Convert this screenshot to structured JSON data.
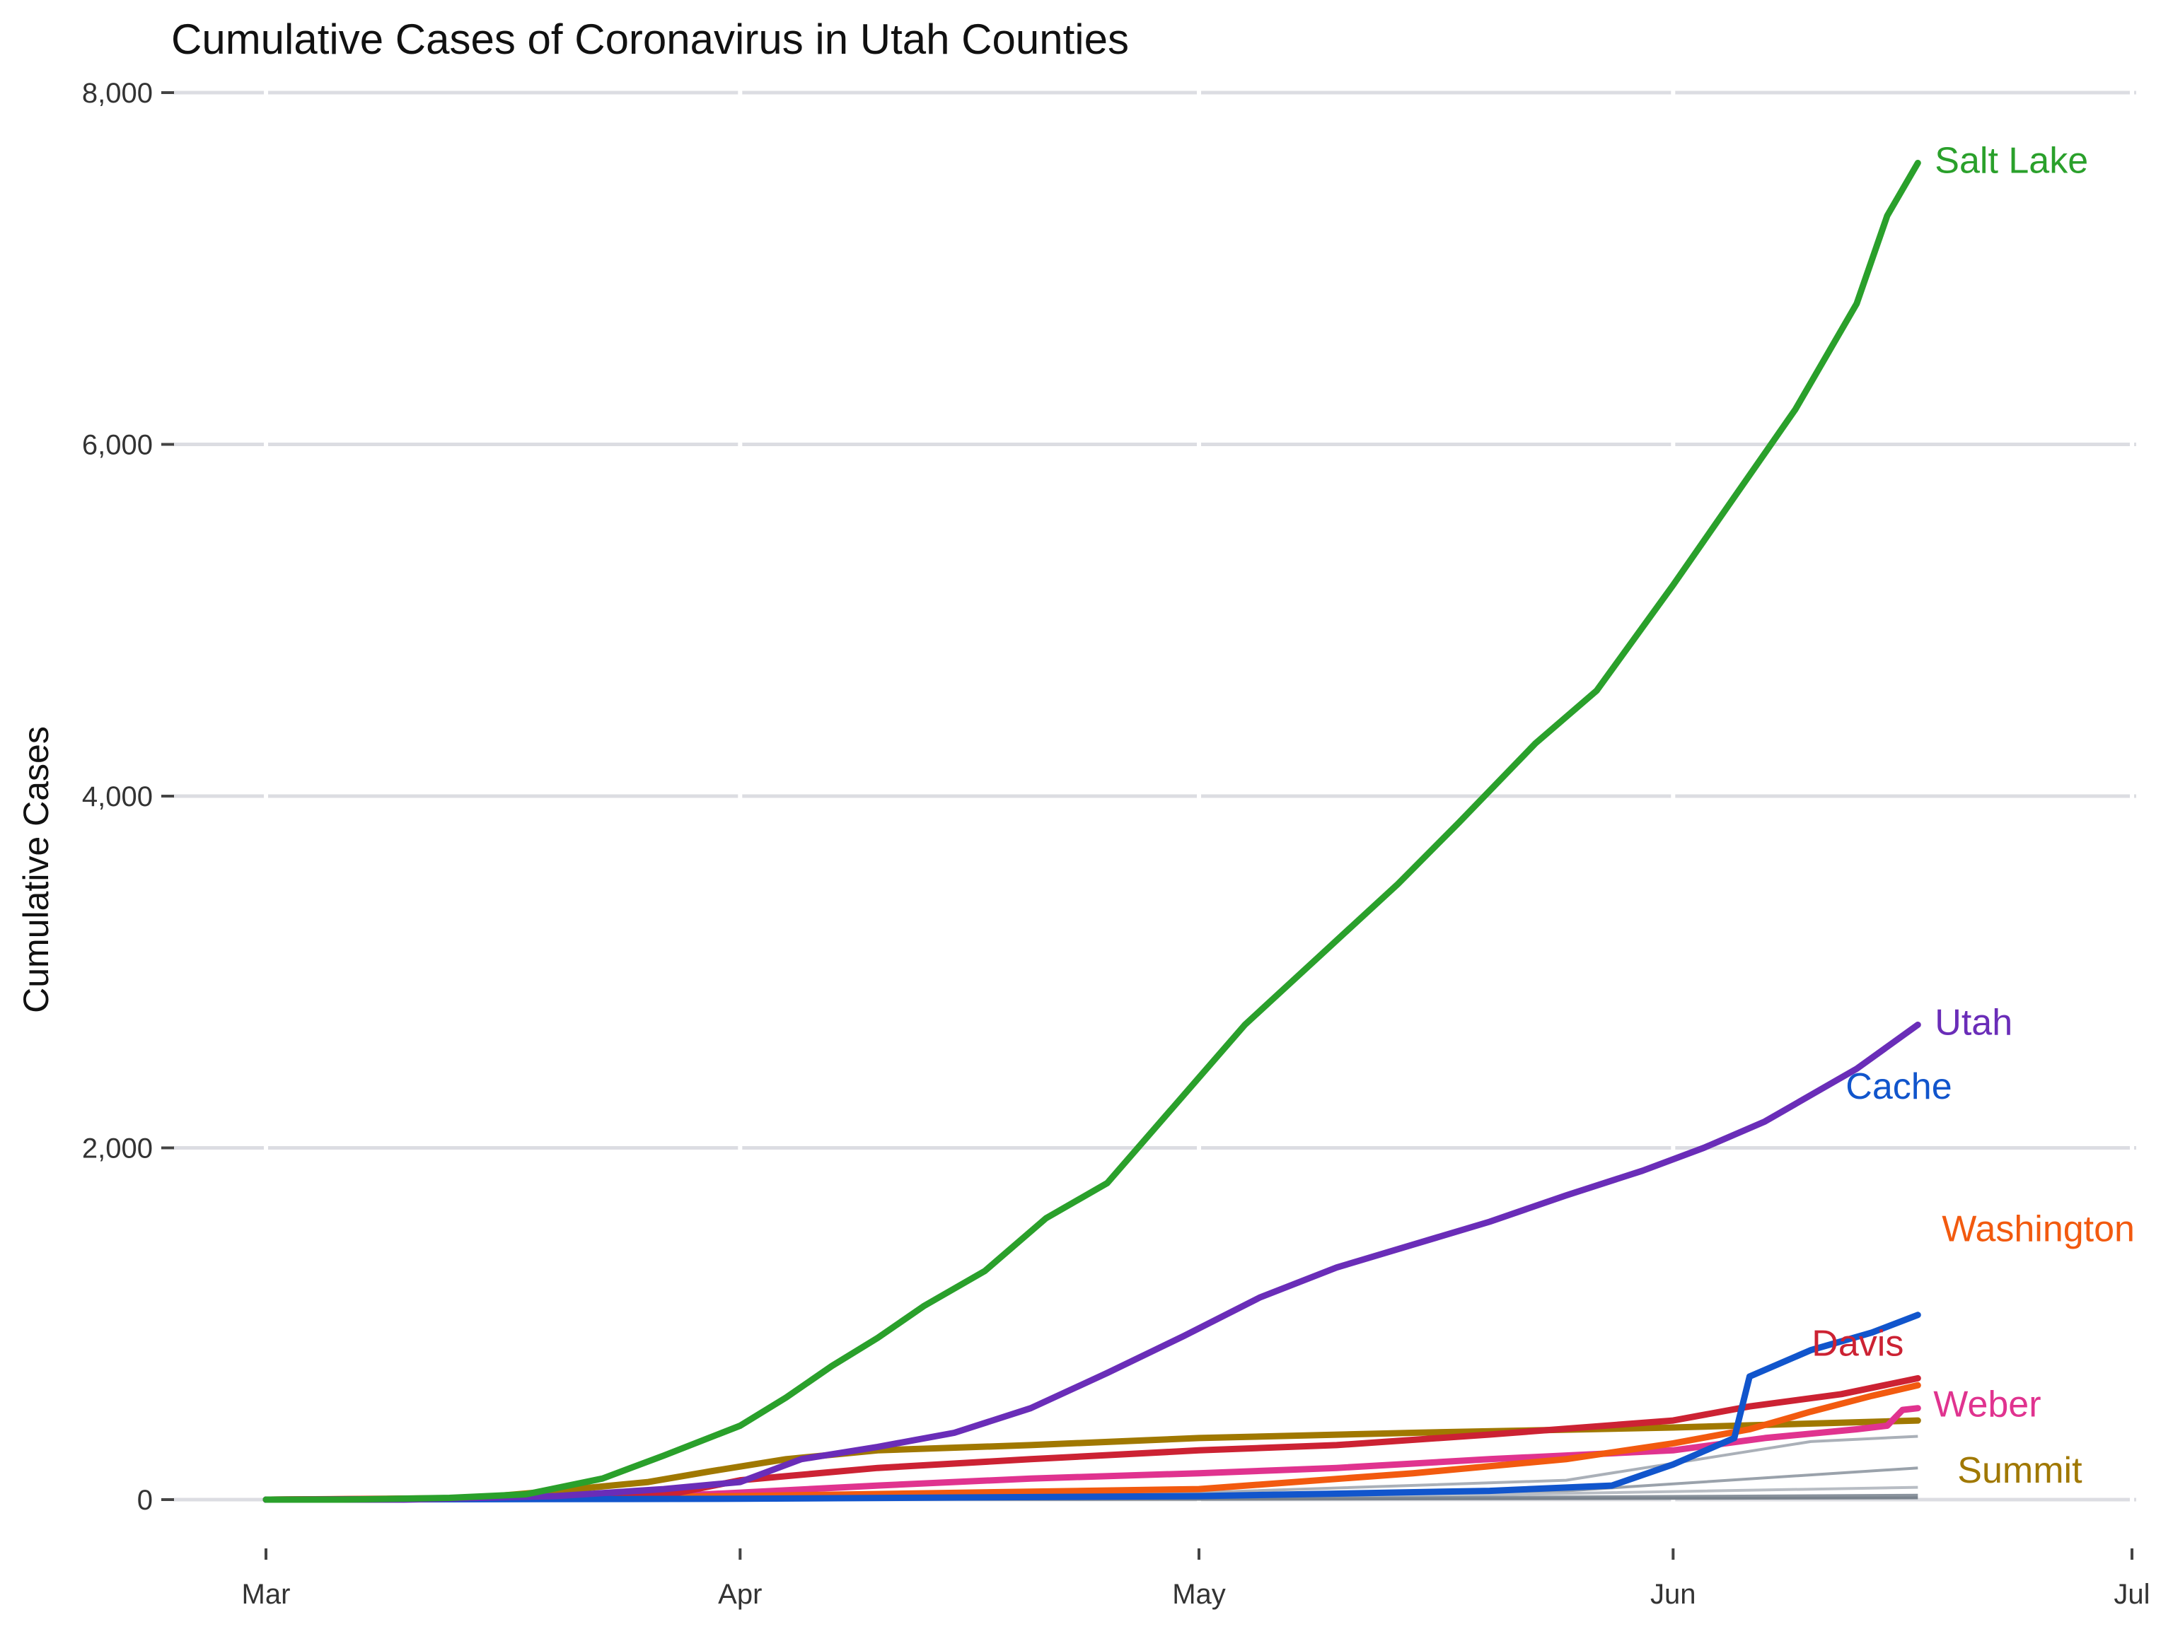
{
  "chart_data": {
    "type": "line",
    "title": "Cumulative Cases of Coronavirus in Utah Counties",
    "xlabel": "",
    "ylabel": "Cumulative Cases",
    "x_range": [
      "2020-03-01",
      "2020-07-01"
    ],
    "ylim": [
      0,
      8000
    ],
    "y_ticks": [
      0,
      2000,
      4000,
      6000,
      8000
    ],
    "y_tick_labels": [
      "0",
      "2,000",
      "4,000",
      "6,000",
      "8,000"
    ],
    "x_ticks": [
      "2020-03-01",
      "2020-04-01",
      "2020-05-01",
      "2020-06-01",
      "2020-07-01"
    ],
    "x_tick_labels": [
      "Mar",
      "Apr",
      "May",
      "Jun",
      "Jul"
    ],
    "grid": true,
    "legend": "direct labels at line ends",
    "series": [
      {
        "name": "Salt Lake",
        "color": "#2aa02b",
        "points": [
          [
            "2020-03-01",
            0
          ],
          [
            "2020-03-06",
            0
          ],
          [
            "2020-03-13",
            10
          ],
          [
            "2020-03-18",
            30
          ],
          [
            "2020-03-23",
            120
          ],
          [
            "2020-03-27",
            250
          ],
          [
            "2020-04-01",
            420
          ],
          [
            "2020-04-04",
            580
          ],
          [
            "2020-04-07",
            760
          ],
          [
            "2020-04-10",
            920
          ],
          [
            "2020-04-13",
            1100
          ],
          [
            "2020-04-17",
            1300
          ],
          [
            "2020-04-21",
            1600
          ],
          [
            "2020-04-25",
            1800
          ],
          [
            "2020-04-30",
            2300
          ],
          [
            "2020-05-04",
            2700
          ],
          [
            "2020-05-09",
            3100
          ],
          [
            "2020-05-14",
            3500
          ],
          [
            "2020-05-18",
            3850
          ],
          [
            "2020-05-23",
            4300
          ],
          [
            "2020-05-27",
            4600
          ],
          [
            "2020-06-01",
            5200
          ],
          [
            "2020-06-05",
            5700
          ],
          [
            "2020-06-09",
            6200
          ],
          [
            "2020-06-13",
            6800
          ],
          [
            "2020-06-15",
            7300
          ],
          [
            "2020-06-17",
            7600
          ]
        ]
      },
      {
        "name": "Utah",
        "color": "#6a2db8",
        "points": [
          [
            "2020-03-01",
            0
          ],
          [
            "2020-03-10",
            0
          ],
          [
            "2020-03-20",
            20
          ],
          [
            "2020-03-27",
            60
          ],
          [
            "2020-04-01",
            100
          ],
          [
            "2020-04-05",
            230
          ],
          [
            "2020-04-10",
            300
          ],
          [
            "2020-04-15",
            380
          ],
          [
            "2020-04-20",
            520
          ],
          [
            "2020-04-25",
            720
          ],
          [
            "2020-04-30",
            930
          ],
          [
            "2020-05-05",
            1150
          ],
          [
            "2020-05-10",
            1320
          ],
          [
            "2020-05-15",
            1450
          ],
          [
            "2020-05-20",
            1580
          ],
          [
            "2020-05-25",
            1730
          ],
          [
            "2020-05-30",
            1870
          ],
          [
            "2020-06-03",
            2000
          ],
          [
            "2020-06-07",
            2150
          ],
          [
            "2020-06-10",
            2300
          ],
          [
            "2020-06-13",
            2450
          ],
          [
            "2020-06-17",
            2700
          ]
        ]
      },
      {
        "name": "Cache",
        "color": "#1155cc",
        "points": [
          [
            "2020-03-01",
            0
          ],
          [
            "2020-04-01",
            5
          ],
          [
            "2020-05-01",
            20
          ],
          [
            "2020-05-20",
            50
          ],
          [
            "2020-05-28",
            80
          ],
          [
            "2020-06-01",
            200
          ],
          [
            "2020-06-05",
            350
          ],
          [
            "2020-06-06",
            700
          ],
          [
            "2020-06-10",
            850
          ],
          [
            "2020-06-14",
            950
          ],
          [
            "2020-06-17",
            1050
          ]
        ]
      },
      {
        "name": "Washington",
        "color": "#f25a0f",
        "points": [
          [
            "2020-03-01",
            0
          ],
          [
            "2020-04-01",
            20
          ],
          [
            "2020-05-01",
            60
          ],
          [
            "2020-05-15",
            150
          ],
          [
            "2020-05-25",
            230
          ],
          [
            "2020-06-01",
            320
          ],
          [
            "2020-06-06",
            400
          ],
          [
            "2020-06-10",
            500
          ],
          [
            "2020-06-14",
            590
          ],
          [
            "2020-06-17",
            650
          ]
        ]
      },
      {
        "name": "Davis",
        "color": "#cc2233",
        "points": [
          [
            "2020-03-01",
            0
          ],
          [
            "2020-03-20",
            10
          ],
          [
            "2020-03-28",
            40
          ],
          [
            "2020-04-01",
            110
          ],
          [
            "2020-04-10",
            180
          ],
          [
            "2020-04-20",
            230
          ],
          [
            "2020-05-01",
            280
          ],
          [
            "2020-05-10",
            310
          ],
          [
            "2020-05-20",
            370
          ],
          [
            "2020-06-01",
            450
          ],
          [
            "2020-06-06",
            530
          ],
          [
            "2020-06-12",
            600
          ],
          [
            "2020-06-17",
            690
          ]
        ]
      },
      {
        "name": "Weber",
        "color": "#e0338f",
        "points": [
          [
            "2020-03-01",
            0
          ],
          [
            "2020-03-25",
            10
          ],
          [
            "2020-04-01",
            40
          ],
          [
            "2020-04-10",
            80
          ],
          [
            "2020-04-20",
            120
          ],
          [
            "2020-05-01",
            150
          ],
          [
            "2020-05-10",
            180
          ],
          [
            "2020-05-20",
            230
          ],
          [
            "2020-06-01",
            280
          ],
          [
            "2020-06-07",
            350
          ],
          [
            "2020-06-13",
            400
          ],
          [
            "2020-06-15",
            420
          ],
          [
            "2020-06-16",
            510
          ],
          [
            "2020-06-17",
            520
          ]
        ]
      },
      {
        "name": "Summit",
        "color": "#a07800",
        "points": [
          [
            "2020-03-01",
            0
          ],
          [
            "2020-03-14",
            5
          ],
          [
            "2020-03-20",
            50
          ],
          [
            "2020-03-26",
            100
          ],
          [
            "2020-03-30",
            160
          ],
          [
            "2020-04-04",
            230
          ],
          [
            "2020-04-10",
            280
          ],
          [
            "2020-04-20",
            310
          ],
          [
            "2020-05-01",
            350
          ],
          [
            "2020-05-15",
            380
          ],
          [
            "2020-06-01",
            410
          ],
          [
            "2020-06-17",
            450
          ]
        ]
      }
    ],
    "other_series": [
      {
        "color": "#aab0b8",
        "points": [
          [
            "2020-03-01",
            0
          ],
          [
            "2020-04-01",
            5
          ],
          [
            "2020-05-01",
            40
          ],
          [
            "2020-05-25",
            110
          ],
          [
            "2020-06-10",
            330
          ],
          [
            "2020-06-17",
            360
          ]
        ]
      },
      {
        "color": "#9aa2ab",
        "points": [
          [
            "2020-03-01",
            0
          ],
          [
            "2020-04-01",
            2
          ],
          [
            "2020-05-01",
            15
          ],
          [
            "2020-05-25",
            50
          ],
          [
            "2020-06-17",
            180
          ]
        ]
      },
      {
        "color": "#b8bdc4",
        "points": [
          [
            "2020-03-01",
            0
          ],
          [
            "2020-04-15",
            5
          ],
          [
            "2020-05-15",
            20
          ],
          [
            "2020-06-17",
            70
          ]
        ]
      },
      {
        "color": "#8a939d",
        "points": [
          [
            "2020-03-01",
            0
          ],
          [
            "2020-05-01",
            5
          ],
          [
            "2020-06-17",
            25
          ]
        ]
      },
      {
        "color": "#7a838d",
        "points": [
          [
            "2020-03-01",
            0
          ],
          [
            "2020-05-01",
            2
          ],
          [
            "2020-06-17",
            10
          ]
        ]
      }
    ]
  }
}
